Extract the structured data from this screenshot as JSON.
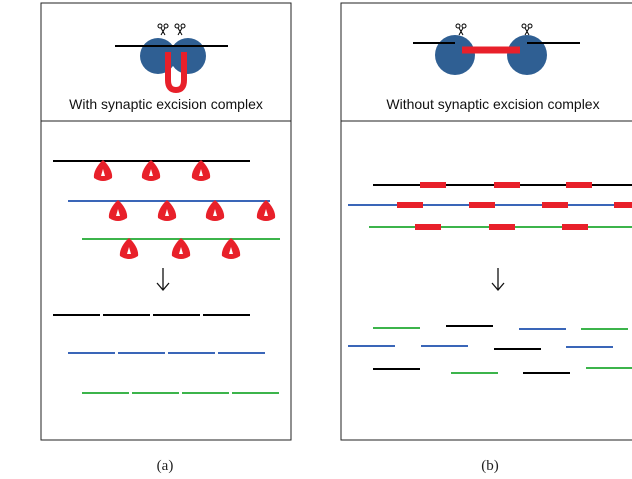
{
  "panels": [
    {
      "caption": "With synaptic excision complex",
      "label": "(a)"
    },
    {
      "caption": "Without synaptic excision complex",
      "label": "(b)"
    }
  ]
}
